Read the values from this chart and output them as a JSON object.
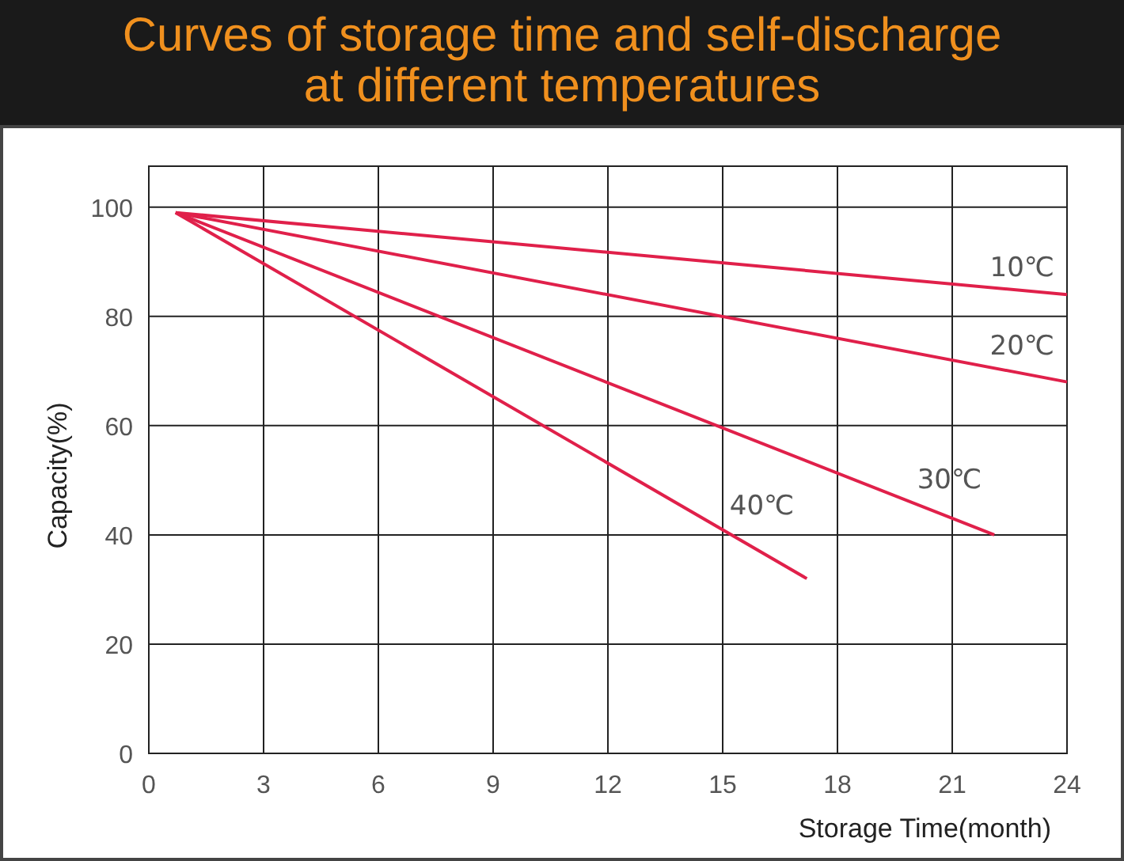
{
  "chart_data": {
    "type": "line",
    "title": "Curves of storage time and self-discharge\nat different temperatures",
    "xlabel": "Storage Time(month)",
    "ylabel": "Capacity(%)",
    "xlim": [
      0,
      24
    ],
    "xticks": [
      0,
      3,
      6,
      9,
      12,
      15,
      18,
      21,
      24
    ],
    "ylim": [
      0,
      107.5
    ],
    "yticks": [
      0,
      20,
      40,
      60,
      80,
      100
    ],
    "grid": true,
    "marker": "none",
    "line_style": "solid",
    "series": [
      {
        "name": "10℃",
        "color": "#e0204a",
        "x": [
          0.7,
          24
        ],
        "values": [
          99,
          84
        ]
      },
      {
        "name": "20℃",
        "color": "#e0204a",
        "x": [
          0.7,
          24
        ],
        "values": [
          99,
          68
        ]
      },
      {
        "name": "30℃",
        "color": "#e0204a",
        "x": [
          0.7,
          22.1
        ],
        "values": [
          99,
          40
        ]
      },
      {
        "name": "40℃",
        "color": "#e0204a",
        "x": [
          0.7,
          17.2
        ],
        "values": [
          99,
          32
        ]
      }
    ]
  }
}
